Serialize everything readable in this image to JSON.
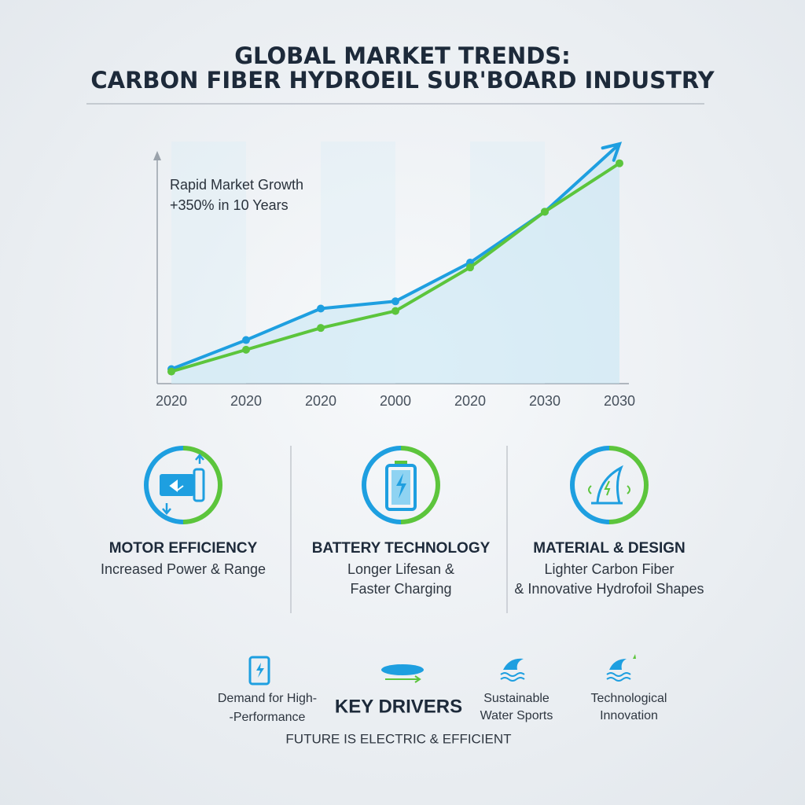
{
  "title": [
    "GLOBAL MARKET TRENDS:",
    "CARBON FIBER HYDROEIL SUR'BOARD INDUSTRY"
  ],
  "chart_data": {
    "type": "line",
    "annotation": [
      "Rapid Market Growth",
      "+350% in 10 Years"
    ],
    "categories": [
      "2020",
      "2020",
      "2020",
      "2000",
      "2020",
      "2030",
      "2030"
    ],
    "series": [
      {
        "color": "#1e9fe0",
        "values": [
          6,
          18,
          31,
          34,
          50,
          71,
          99
        ]
      },
      {
        "color": "#5cc53c",
        "values": [
          5,
          14,
          23,
          30,
          48,
          71,
          91
        ]
      }
    ],
    "ylim": [
      0,
      100
    ]
  },
  "features": [
    {
      "title": "MOTOR EFFICIENCY",
      "description": [
        "Increased Power & Range"
      ]
    },
    {
      "title": "BATTERY TECHNOLOGY",
      "description": [
        "Longer Lifesan &",
        "Faster Charging"
      ]
    },
    {
      "title": "MATERIAL & DESIGN",
      "description": [
        "Lighter Carbon Fiber",
        "& Innovative Hydrofoil Shapes"
      ]
    }
  ],
  "drivers": {
    "heading": "KEY DRIVERS",
    "items": [
      [
        "Demand for High-",
        "-Performance"
      ],
      [
        "Sustainable",
        "Water Sports"
      ],
      [
        "Technological",
        "Innovation"
      ]
    ]
  },
  "footer": "FUTURE IS ELECTRIC & EFFICIENT"
}
